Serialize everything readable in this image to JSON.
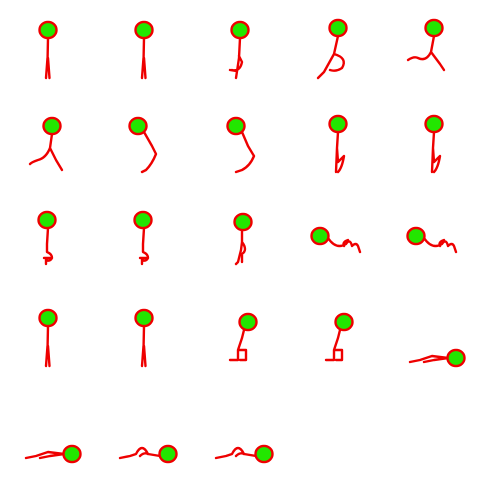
{
  "sprite_sheet": {
    "head_fill": "#22e600",
    "outline_color": "#ee0000",
    "background": "#ffffff",
    "columns": 5,
    "frame_count": 23,
    "rows": [
      {
        "row": 0,
        "poses": [
          "stand",
          "stand",
          "step-knee-up",
          "lunge",
          "crouch-jump"
        ]
      },
      {
        "row": 1,
        "poses": [
          "stagger-left",
          "bend-forward",
          "bend-forward-deep",
          "knee-raise",
          "knee-raise"
        ]
      },
      {
        "row": 2,
        "poses": [
          "kneel",
          "kneel",
          "kneel-low",
          "crawl",
          "crawl"
        ]
      },
      {
        "row": 3,
        "poses": [
          "stand",
          "stand",
          "sit",
          "sit",
          "lying"
        ]
      },
      {
        "row": 4,
        "poses": [
          "lying",
          "lying-leg-up",
          "lying-leg-up"
        ]
      }
    ]
  }
}
